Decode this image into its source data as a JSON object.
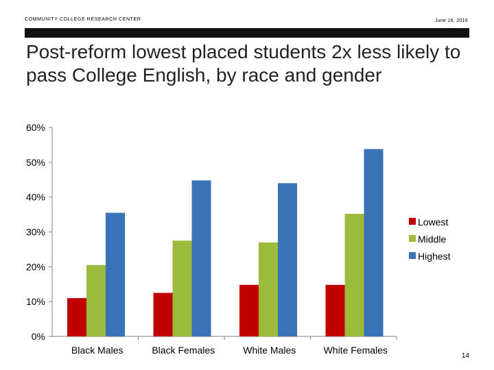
{
  "header": {
    "organization": "COMMUNITY COLLEGE RESEARCH CENTER",
    "date": "June 16, 2016"
  },
  "slide": {
    "title": "Post-reform lowest placed students 2x less likely to pass College English, by race and gender",
    "page_number": "14"
  },
  "chart_data": {
    "type": "bar",
    "title": "",
    "xlabel": "",
    "ylabel": "",
    "categories": [
      "Black Males",
      "Black Females",
      "White Males",
      "White Females"
    ],
    "series": [
      {
        "name": "Lowest",
        "color": "#c00000",
        "values": [
          0.11,
          0.125,
          0.148,
          0.148
        ]
      },
      {
        "name": "Middle",
        "color": "#9bbb3d",
        "values": [
          0.205,
          0.275,
          0.27,
          0.352
        ]
      },
      {
        "name": "Highest",
        "color": "#3a72b8",
        "values": [
          0.355,
          0.448,
          0.44,
          0.538
        ]
      }
    ],
    "ylim": [
      0,
      0.6
    ],
    "yticks": [
      0,
      0.1,
      0.2,
      0.3,
      0.4,
      0.5,
      0.6
    ],
    "ytick_labels": [
      "0%",
      "10%",
      "20%",
      "30%",
      "40%",
      "50%",
      "60%"
    ],
    "grid": false,
    "legend": "right"
  }
}
